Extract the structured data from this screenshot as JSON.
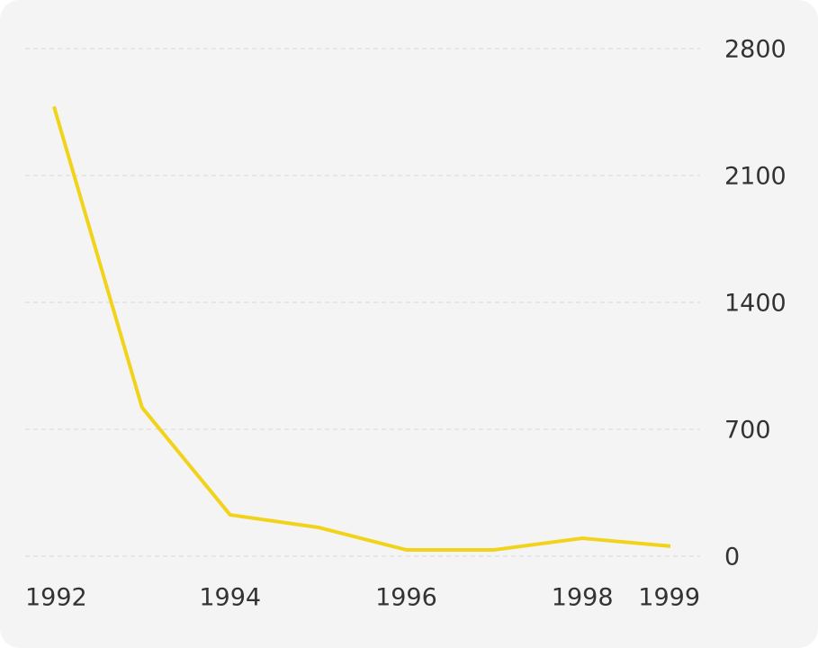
{
  "chart_data": {
    "type": "line",
    "x": [
      1992,
      1993,
      1994,
      1995,
      1996,
      1997,
      1998,
      1999
    ],
    "series": [
      {
        "color": "#f2d31b",
        "values": [
          2480,
          820,
          228,
          159,
          35,
          35,
          99,
          55
        ]
      }
    ],
    "xlim": [
      1992,
      1999
    ],
    "xticks": [
      1992,
      1994,
      1996,
      1998,
      1999
    ],
    "ylim": [
      0,
      2800
    ],
    "yticks": [
      0,
      700,
      1400,
      2100,
      2800
    ],
    "grid": true
  }
}
